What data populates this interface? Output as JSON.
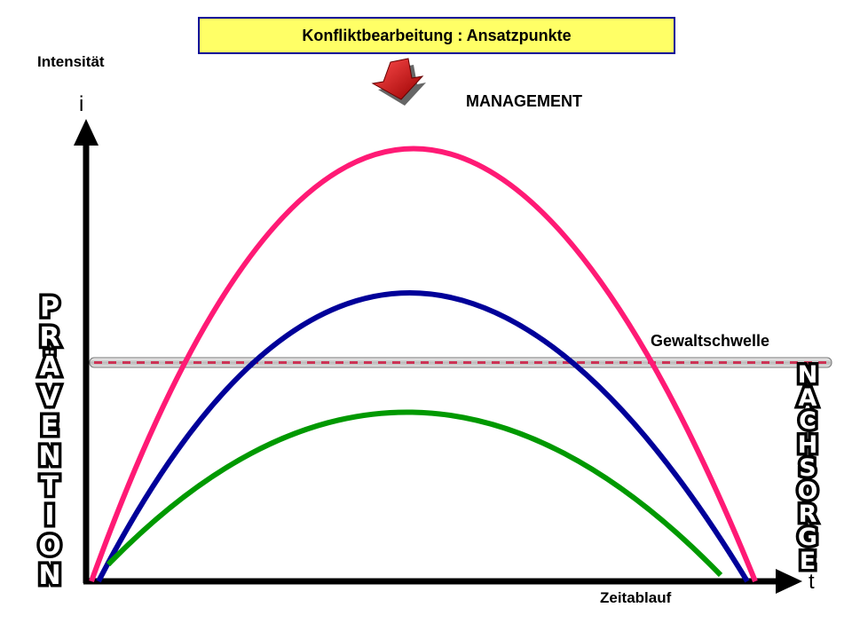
{
  "title": "Konfliktbearbeitung : Ansatzpunkte",
  "labels": {
    "intensity": "Intensität",
    "management": "MANAGEMENT",
    "time": "Zeitablauf",
    "threshold": "Gewaltschwelle",
    "axis_y": "i",
    "axis_x": "t"
  },
  "vertical_words": {
    "left": "PRÄVENTION",
    "right": "NACHSORGE"
  },
  "colors": {
    "curve_high": "#ff1a75",
    "curve_mid": "#000099",
    "curve_low": "#009900",
    "title_fill": "#ffff66",
    "title_border": "#000099",
    "threshold_label": "#990033",
    "threshold_dash": "#cc3355"
  },
  "icons": {
    "arrow": "down-arrow-icon"
  }
}
